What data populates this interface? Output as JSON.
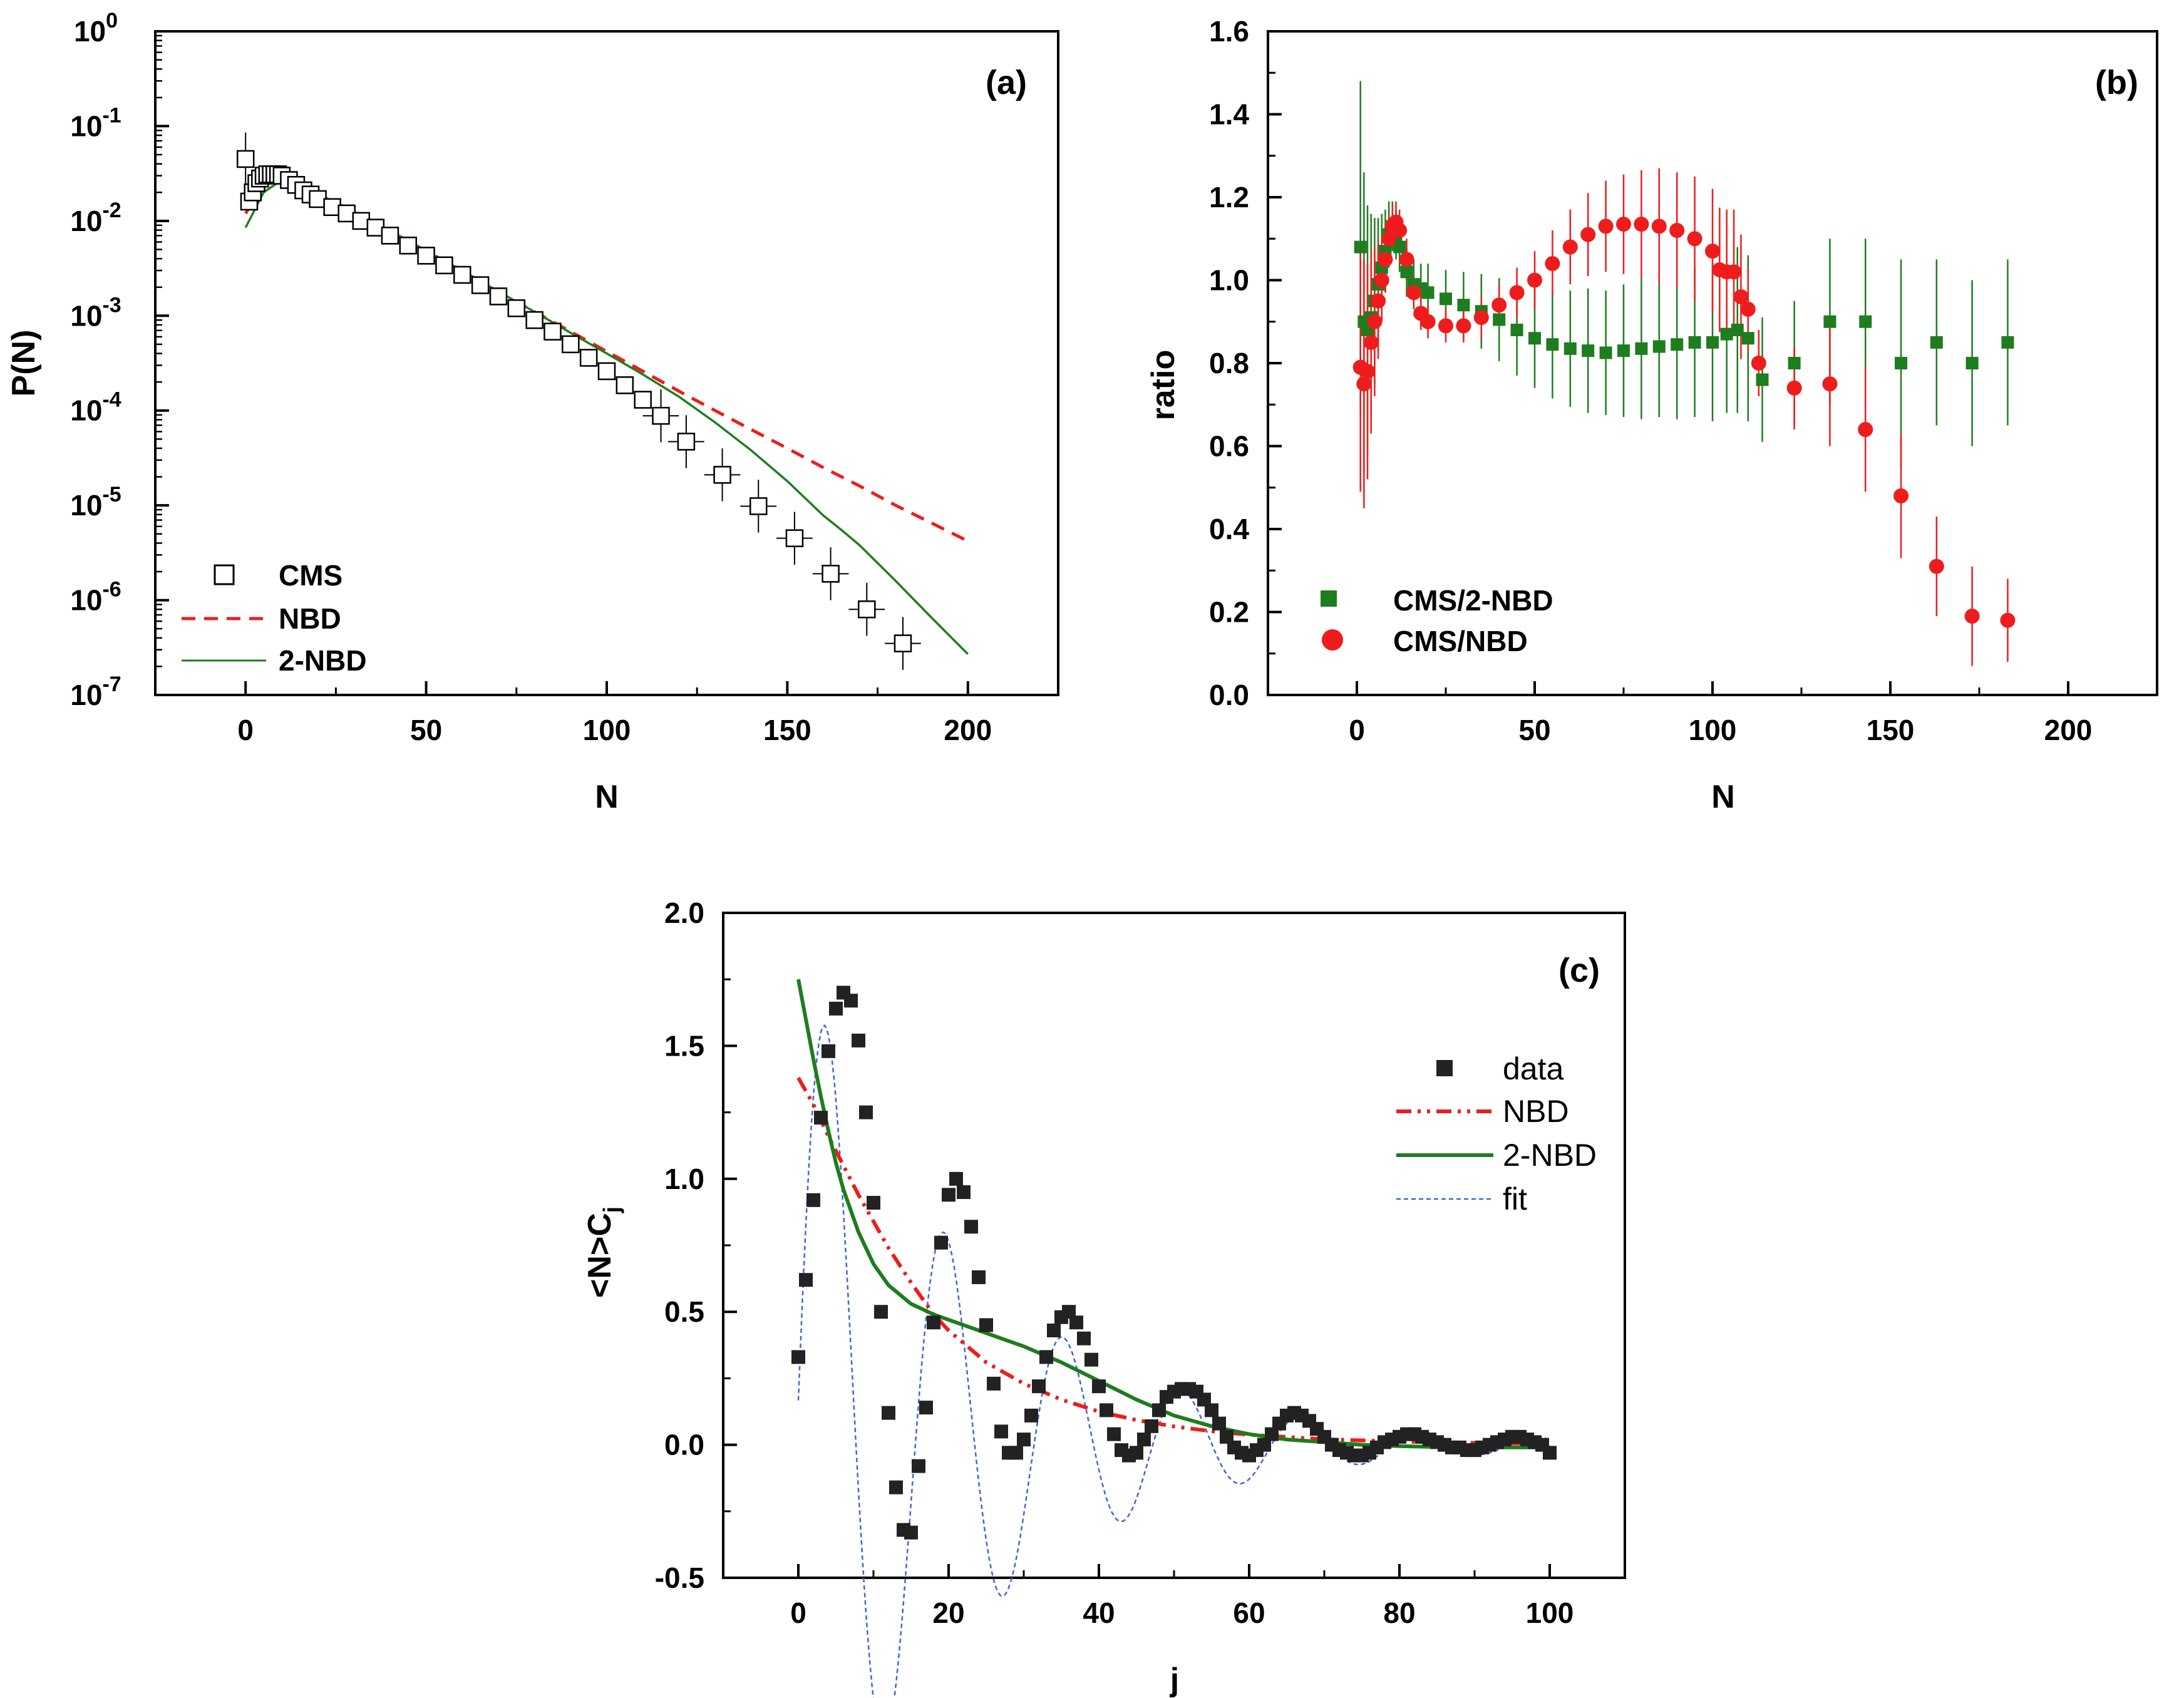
{
  "chart_data": [
    {
      "panel": "(a)",
      "type": "scatter",
      "xlabel": "N",
      "ylabel": "P(N)",
      "yscale": "log",
      "xlim": [
        -25,
        225
      ],
      "ylim_exponent": [
        -7,
        0
      ],
      "x_ticks": [
        "0",
        "50",
        "100",
        "150",
        "200"
      ],
      "y_tick_base": "10",
      "y_tick_exponents": [
        "-7",
        "-6",
        "-5",
        "-4",
        "-3",
        "-2",
        "-1",
        "0"
      ],
      "legend": [
        "CMS",
        "NBD",
        "2-NBD"
      ],
      "legend_position": "bottom-left",
      "series": [
        {
          "name": "CMS",
          "x": [
            0,
            1,
            2,
            3,
            4,
            5,
            6,
            7,
            8,
            9,
            10,
            12,
            14,
            16,
            18,
            20,
            24,
            28,
            32,
            36,
            40,
            45,
            50,
            55,
            60,
            65,
            70,
            75,
            80,
            85,
            90,
            95,
            100,
            105,
            110,
            115,
            122,
            132,
            142,
            152,
            162,
            172,
            182
          ],
          "y": [
            0.045,
            0.016,
            0.02,
            0.025,
            0.028,
            0.03,
            0.031,
            0.031,
            0.031,
            0.031,
            0.03,
            0.027,
            0.024,
            0.021,
            0.019,
            0.017,
            0.014,
            0.012,
            0.01,
            0.0085,
            0.007,
            0.0055,
            0.0043,
            0.0034,
            0.0027,
            0.0021,
            0.0016,
            0.0012,
            0.0009,
            0.00068,
            0.0005,
            0.00036,
            0.00026,
            0.000185,
            0.00013,
            8.8e-05,
            4.7e-05,
            2.1e-05,
            9.8e-06,
            4.5e-06,
            1.9e-06,
            8e-07,
            3.5e-07
          ]
        },
        {
          "name": "NBD",
          "x": [
            0,
            5,
            10,
            15,
            20,
            30,
            40,
            50,
            60,
            70,
            80,
            90,
            100,
            110,
            120,
            130,
            140,
            150,
            160,
            170,
            180,
            190,
            200
          ],
          "y": [
            0.012,
            0.024,
            0.028,
            0.024,
            0.019,
            0.0125,
            0.0078,
            0.0048,
            0.003,
            0.0018,
            0.0011,
            0.00068,
            0.00042,
            0.00026,
            0.00016,
            0.0001,
            6.3e-05,
            4e-05,
            2.5e-05,
            1.6e-05,
            1e-05,
            6.5e-06,
            4.2e-06
          ]
        },
        {
          "name": "2-NBD",
          "x": [
            0,
            5,
            10,
            15,
            20,
            30,
            40,
            50,
            60,
            70,
            80,
            90,
            100,
            110,
            120,
            130,
            140,
            150,
            160,
            165,
            170,
            180,
            190,
            200
          ],
          "y": [
            0.0085,
            0.02,
            0.027,
            0.023,
            0.019,
            0.0125,
            0.0078,
            0.0048,
            0.003,
            0.0018,
            0.0011,
            0.00066,
            0.0004,
            0.00024,
            0.00014,
            7.5e-05,
            3.8e-05,
            1.8e-05,
            7.8e-06,
            5.5e-06,
            3.8e-06,
            1.6e-06,
            6.5e-07,
            2.7e-07
          ]
        }
      ]
    },
    {
      "panel": "(b)",
      "type": "scatter",
      "xlabel": "N",
      "ylabel": "ratio",
      "xlim": [
        -25,
        225
      ],
      "ylim": [
        0,
        1.6
      ],
      "x_ticks": [
        "0",
        "50",
        "100",
        "150",
        "200"
      ],
      "y_ticks": [
        "0.0",
        "0.2",
        "0.4",
        "0.6",
        "0.8",
        "1.0",
        "1.2",
        "1.4",
        "1.6"
      ],
      "legend": [
        "CMS/2-NBD",
        "CMS/NBD"
      ],
      "legend_position": "bottom-left",
      "series": [
        {
          "name": "CMS/2-NBD",
          "x": [
            1,
            2,
            3,
            4,
            5,
            6,
            7,
            8,
            9,
            10,
            11,
            12,
            14,
            16,
            18,
            20,
            25,
            30,
            35,
            40,
            45,
            50,
            55,
            60,
            65,
            70,
            75,
            80,
            85,
            90,
            95,
            100,
            104,
            107,
            110,
            114,
            123,
            133,
            143,
            153,
            163,
            173,
            183
          ],
          "y": [
            1.08,
            0.9,
            0.88,
            0.91,
            0.95,
            0.99,
            1.03,
            1.07,
            1.11,
            1.13,
            1.11,
            1.08,
            1.02,
            0.99,
            0.98,
            0.97,
            0.955,
            0.94,
            0.925,
            0.905,
            0.88,
            0.86,
            0.845,
            0.835,
            0.83,
            0.825,
            0.83,
            0.835,
            0.84,
            0.845,
            0.85,
            0.85,
            0.87,
            0.88,
            0.86,
            0.76,
            0.8,
            0.9,
            0.9,
            0.8,
            0.85,
            0.8,
            0.85
          ],
          "err": [
            0.4,
            0.36,
            0.3,
            0.25,
            0.2,
            0.16,
            0.13,
            0.1,
            0.08,
            0.06,
            0.06,
            0.06,
            0.06,
            0.06,
            0.06,
            0.07,
            0.07,
            0.08,
            0.09,
            0.1,
            0.11,
            0.12,
            0.13,
            0.14,
            0.15,
            0.15,
            0.16,
            0.17,
            0.17,
            0.18,
            0.18,
            0.19,
            0.19,
            0.2,
            0.2,
            0.15,
            0.15,
            0.2,
            0.2,
            0.25,
            0.2,
            0.2,
            0.2
          ]
        },
        {
          "name": "CMS/NBD",
          "x": [
            1,
            2,
            3,
            4,
            5,
            6,
            7,
            8,
            9,
            10,
            11,
            12,
            14,
            16,
            18,
            20,
            25,
            30,
            35,
            40,
            45,
            50,
            55,
            60,
            65,
            70,
            75,
            80,
            85,
            90,
            95,
            100,
            102,
            104,
            106,
            108,
            110,
            113,
            123,
            133,
            143,
            153,
            163,
            173,
            183
          ],
          "y": [
            0.79,
            0.75,
            0.78,
            0.85,
            0.9,
            0.95,
            1.0,
            1.05,
            1.1,
            1.13,
            1.14,
            1.12,
            1.05,
            0.97,
            0.92,
            0.9,
            0.89,
            0.89,
            0.91,
            0.94,
            0.97,
            1.0,
            1.04,
            1.08,
            1.11,
            1.13,
            1.135,
            1.135,
            1.13,
            1.12,
            1.1,
            1.07,
            1.025,
            1.02,
            1.02,
            0.96,
            0.93,
            0.8,
            0.74,
            0.75,
            0.64,
            0.48,
            0.31,
            0.19,
            0.18
          ],
          "err": [
            0.3,
            0.3,
            0.26,
            0.22,
            0.18,
            0.14,
            0.1,
            0.08,
            0.06,
            0.05,
            0.05,
            0.05,
            0.05,
            0.04,
            0.04,
            0.04,
            0.04,
            0.04,
            0.05,
            0.05,
            0.06,
            0.07,
            0.08,
            0.09,
            0.1,
            0.11,
            0.12,
            0.13,
            0.14,
            0.14,
            0.15,
            0.15,
            0.15,
            0.15,
            0.15,
            0.15,
            0.1,
            0.08,
            0.1,
            0.15,
            0.15,
            0.15,
            0.12,
            0.12,
            0.1
          ]
        }
      ]
    },
    {
      "panel": "(c)",
      "type": "scatter",
      "xlabel": "j",
      "ylabel": "<N>C",
      "ylabel_subscript": "j",
      "xlim": [
        -10,
        110
      ],
      "ylim": [
        -0.5,
        2.0
      ],
      "x_ticks": [
        "0",
        "20",
        "40",
        "60",
        "80",
        "100"
      ],
      "y_ticks": [
        "-0.5",
        "0.0",
        "0.5",
        "1.0",
        "1.5",
        "2.0"
      ],
      "legend": [
        "data",
        "NBD",
        "2-NBD",
        "fit"
      ],
      "legend_position": "top-right",
      "series": [
        {
          "name": "data",
          "x": [
            0,
            1,
            2,
            3,
            4,
            5,
            6,
            7,
            8,
            9,
            10,
            11,
            12,
            13,
            14,
            15,
            16,
            17,
            18,
            19,
            20,
            21,
            22,
            23,
            24,
            25,
            26,
            27,
            28,
            29,
            30,
            31,
            32,
            33,
            34,
            35,
            36,
            37,
            38,
            39,
            40,
            41,
            42,
            43,
            44,
            45,
            46,
            47,
            48,
            49,
            50,
            51,
            52,
            53,
            54,
            55,
            56,
            57,
            58,
            59,
            60,
            61,
            62,
            63,
            64,
            65,
            66,
            67,
            68,
            69,
            70,
            71,
            72,
            73,
            74,
            75,
            76,
            77,
            78,
            79,
            80,
            81,
            82,
            83,
            84,
            85,
            86,
            87,
            88,
            89,
            90,
            91,
            92,
            93,
            94,
            95,
            96,
            97,
            98,
            99,
            100
          ],
          "y": [
            0.33,
            0.62,
            0.92,
            1.23,
            1.48,
            1.64,
            1.7,
            1.67,
            1.52,
            1.25,
            0.91,
            0.5,
            0.12,
            -0.16,
            -0.32,
            -0.33,
            -0.08,
            0.14,
            0.46,
            0.76,
            0.94,
            1.0,
            0.95,
            0.82,
            0.63,
            0.45,
            0.23,
            0.05,
            -0.03,
            -0.03,
            0.02,
            0.11,
            0.22,
            0.33,
            0.43,
            0.48,
            0.5,
            0.46,
            0.4,
            0.32,
            0.22,
            0.13,
            0.04,
            -0.02,
            -0.04,
            -0.03,
            0.02,
            0.07,
            0.13,
            0.18,
            0.2,
            0.21,
            0.21,
            0.2,
            0.17,
            0.13,
            0.08,
            0.03,
            -0.01,
            -0.03,
            -0.04,
            -0.02,
            0.0,
            0.04,
            0.08,
            0.11,
            0.12,
            0.11,
            0.09,
            0.06,
            0.03,
            0.0,
            -0.02,
            -0.03,
            -0.04,
            -0.04,
            -0.03,
            -0.01,
            0.01,
            0.02,
            0.03,
            0.04,
            0.04,
            0.03,
            0.02,
            0.01,
            0.0,
            -0.01,
            -0.01,
            -0.02,
            -0.02,
            -0.01,
            0.0,
            0.01,
            0.02,
            0.03,
            0.03,
            0.02,
            0.01,
            0.0,
            -0.03
          ]
        },
        {
          "name": "NBD",
          "x": [
            0,
            2,
            4,
            6,
            8,
            10,
            12,
            15,
            18,
            20,
            25,
            30,
            35,
            40,
            45,
            50,
            55,
            60,
            70,
            80,
            90,
            100
          ],
          "y": [
            1.38,
            1.28,
            1.16,
            1.05,
            0.94,
            0.84,
            0.74,
            0.61,
            0.49,
            0.43,
            0.31,
            0.23,
            0.17,
            0.125,
            0.093,
            0.069,
            0.051,
            0.038,
            0.021,
            0.012,
            0.007,
            0.004
          ]
        },
        {
          "name": "2-NBD",
          "x": [
            0,
            1,
            2,
            3,
            4,
            5,
            6,
            8,
            10,
            12,
            15,
            18,
            20,
            25,
            30,
            35,
            40,
            45,
            50,
            55,
            60,
            65,
            70,
            75,
            80,
            85,
            90,
            95,
            100
          ],
          "y": [
            1.75,
            1.6,
            1.45,
            1.31,
            1.18,
            1.06,
            0.96,
            0.8,
            0.68,
            0.6,
            0.53,
            0.49,
            0.47,
            0.42,
            0.37,
            0.31,
            0.24,
            0.17,
            0.11,
            0.07,
            0.04,
            0.02,
            0.01,
            0.0,
            -0.005,
            -0.008,
            -0.01,
            -0.01,
            -0.01
          ]
        },
        {
          "name": "fit",
          "model": "fit",
          "amplitude": 1.84,
          "decay": 0.043,
          "period": 15.8,
          "phase": -1.48,
          "x_range": [
            0,
            100
          ]
        }
      ]
    }
  ],
  "colors": {
    "nbd_red": "#ee1c1c",
    "green": "#1e7d1e",
    "fit_blue": "#4466cc",
    "data_black": "#222222"
  }
}
